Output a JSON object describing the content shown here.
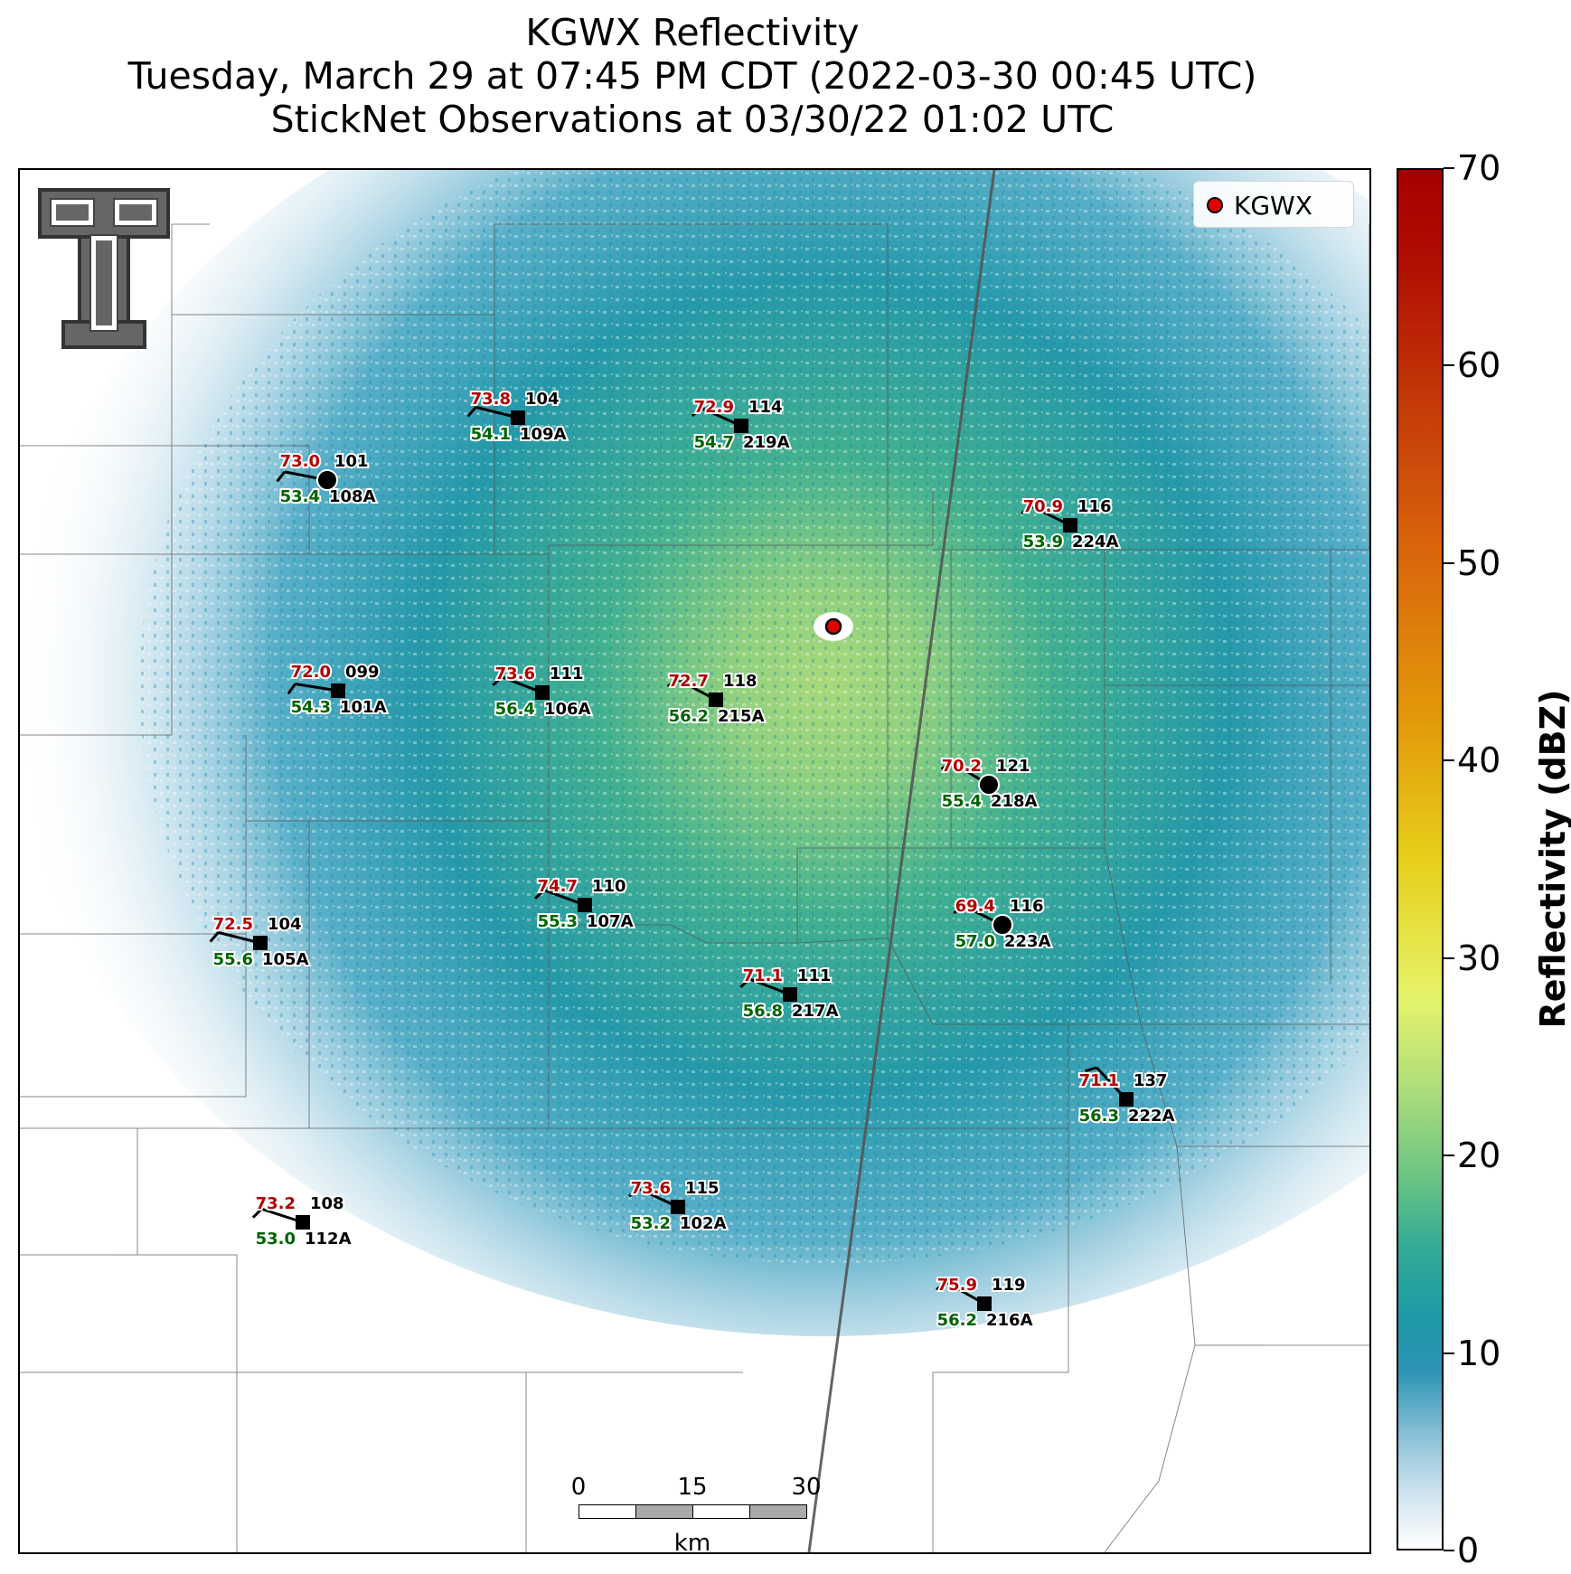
{
  "title": {
    "line1": "KGWX Reflectivity",
    "line2": "Tuesday, March 29 at 07:45 PM CDT (2022-03-30 00:45 UTC)",
    "line3": "StickNet Observations at 03/30/22 01:02 UTC"
  },
  "legend": {
    "label": "KGWX",
    "marker_color": "#e00000"
  },
  "colorbar": {
    "title": "Reflectivity (dBZ)",
    "ticks": [
      "0",
      "10",
      "20",
      "30",
      "40",
      "50",
      "60",
      "70"
    ],
    "min": 0,
    "max": 70
  },
  "scalebar": {
    "ticks": [
      "0",
      "15",
      "30"
    ],
    "unit": "km"
  },
  "colors": {
    "temperature": "#b30000",
    "dewpoint": "#006400",
    "id": "#000000",
    "radar_site": "#e00000"
  },
  "stations": [
    {
      "id": "108A",
      "temp": "73.0",
      "dewpt": "53.4",
      "dir": "101",
      "marker": "circle"
    },
    {
      "id": "109A",
      "temp": "73.8",
      "dewpt": "54.1",
      "dir": "104",
      "marker": "square"
    },
    {
      "id": "219A",
      "temp": "72.9",
      "dewpt": "54.7",
      "dir": "114",
      "marker": "square"
    },
    {
      "id": "224A",
      "temp": "70.9",
      "dewpt": "53.9",
      "dir": "116",
      "marker": "square"
    },
    {
      "id": "101A",
      "temp": "72.0",
      "dewpt": "54.3",
      "dir": "099",
      "marker": "square"
    },
    {
      "id": "106A",
      "temp": "73.6",
      "dewpt": "56.4",
      "dir": "111",
      "marker": "square"
    },
    {
      "id": "215A",
      "temp": "72.7",
      "dewpt": "56.2",
      "dir": "118",
      "marker": "square"
    },
    {
      "id": "218A",
      "temp": "70.2",
      "dewpt": "55.4",
      "dir": "121",
      "marker": "circle"
    },
    {
      "id": "107A",
      "temp": "74.7",
      "dewpt": "55.3",
      "dir": "110",
      "marker": "square"
    },
    {
      "id": "223A",
      "temp": "69.4",
      "dewpt": "57.0",
      "dir": "116",
      "marker": "circle"
    },
    {
      "id": "105A",
      "temp": "72.5",
      "dewpt": "55.6",
      "dir": "104",
      "marker": "square"
    },
    {
      "id": "217A",
      "temp": "71.1",
      "dewpt": "56.8",
      "dir": "111",
      "marker": "square"
    },
    {
      "id": "222A",
      "temp": "71.1",
      "dewpt": "56.3",
      "dir": "137",
      "marker": "square"
    },
    {
      "id": "102A",
      "temp": "73.6",
      "dewpt": "53.2",
      "dir": "115",
      "marker": "square"
    },
    {
      "id": "112A",
      "temp": "73.2",
      "dewpt": "53.0",
      "dir": "108",
      "marker": "square"
    },
    {
      "id": "216A",
      "temp": "75.9",
      "dewpt": "56.2",
      "dir": "119",
      "marker": "square"
    }
  ]
}
